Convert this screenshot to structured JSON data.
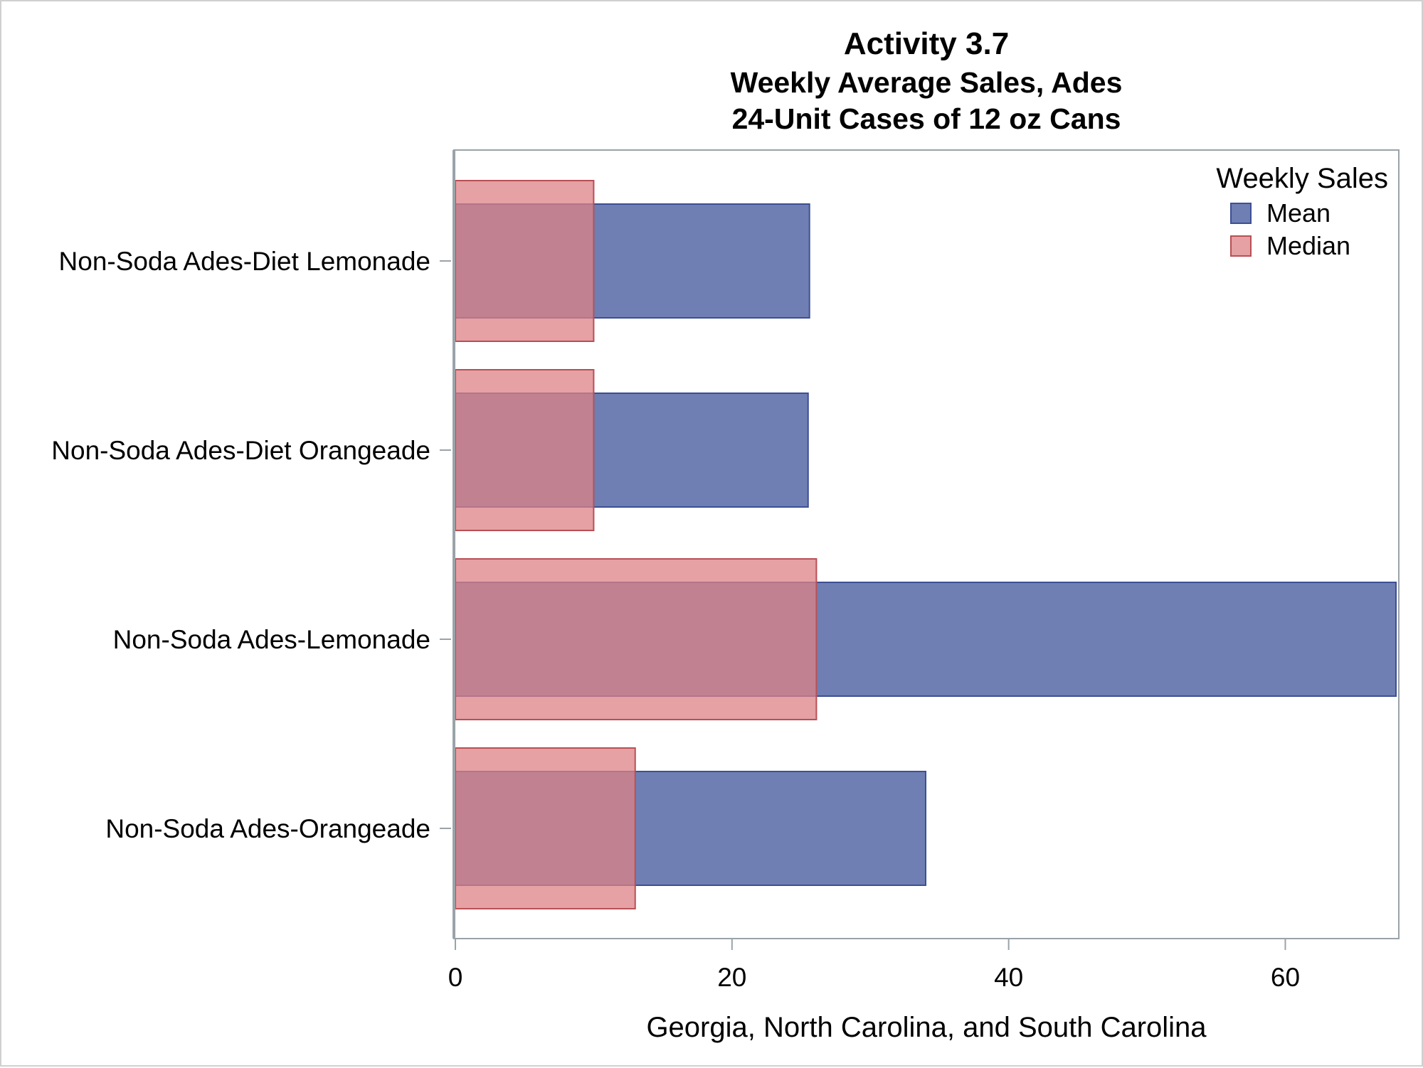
{
  "chart_data": {
    "type": "bar",
    "orientation": "horizontal",
    "title": "Activity 3.7",
    "subtitle_1": "Weekly Average Sales, Ades",
    "subtitle_2": "24-Unit Cases of 12 oz Cans",
    "xlabel": "Georgia, North Carolina, and South Carolina",
    "ylabel": "",
    "xlim": [
      0,
      68
    ],
    "xticks": [
      0,
      20,
      40,
      60
    ],
    "categories": [
      "Non-Soda Ades-Diet Lemonade",
      "Non-Soda Ades-Diet Orangeade",
      "Non-Soda Ades-Lemonade",
      "Non-Soda Ades-Orangeade"
    ],
    "series": [
      {
        "name": "Mean",
        "values": [
          25.6,
          25.5,
          68.0,
          34.0
        ],
        "color": "#6f7fb3",
        "stroke": "#3d4f94"
      },
      {
        "name": "Median",
        "values": [
          10.0,
          10.0,
          26.1,
          13.0
        ],
        "color": "#dc8286",
        "stroke": "#b85055",
        "opacity": 0.75
      }
    ],
    "legend": {
      "title": "Weekly Sales",
      "position": "top-right"
    },
    "grid": false
  }
}
